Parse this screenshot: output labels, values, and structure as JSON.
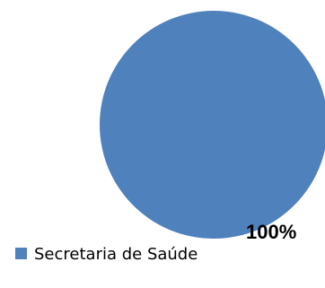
{
  "chart_data": {
    "type": "pie",
    "slices": [
      {
        "label": "Secretaria de Saúde",
        "value": 100,
        "data_label": "100%",
        "color": "#4f81bd"
      }
    ],
    "legend_position": "bottom-left"
  }
}
